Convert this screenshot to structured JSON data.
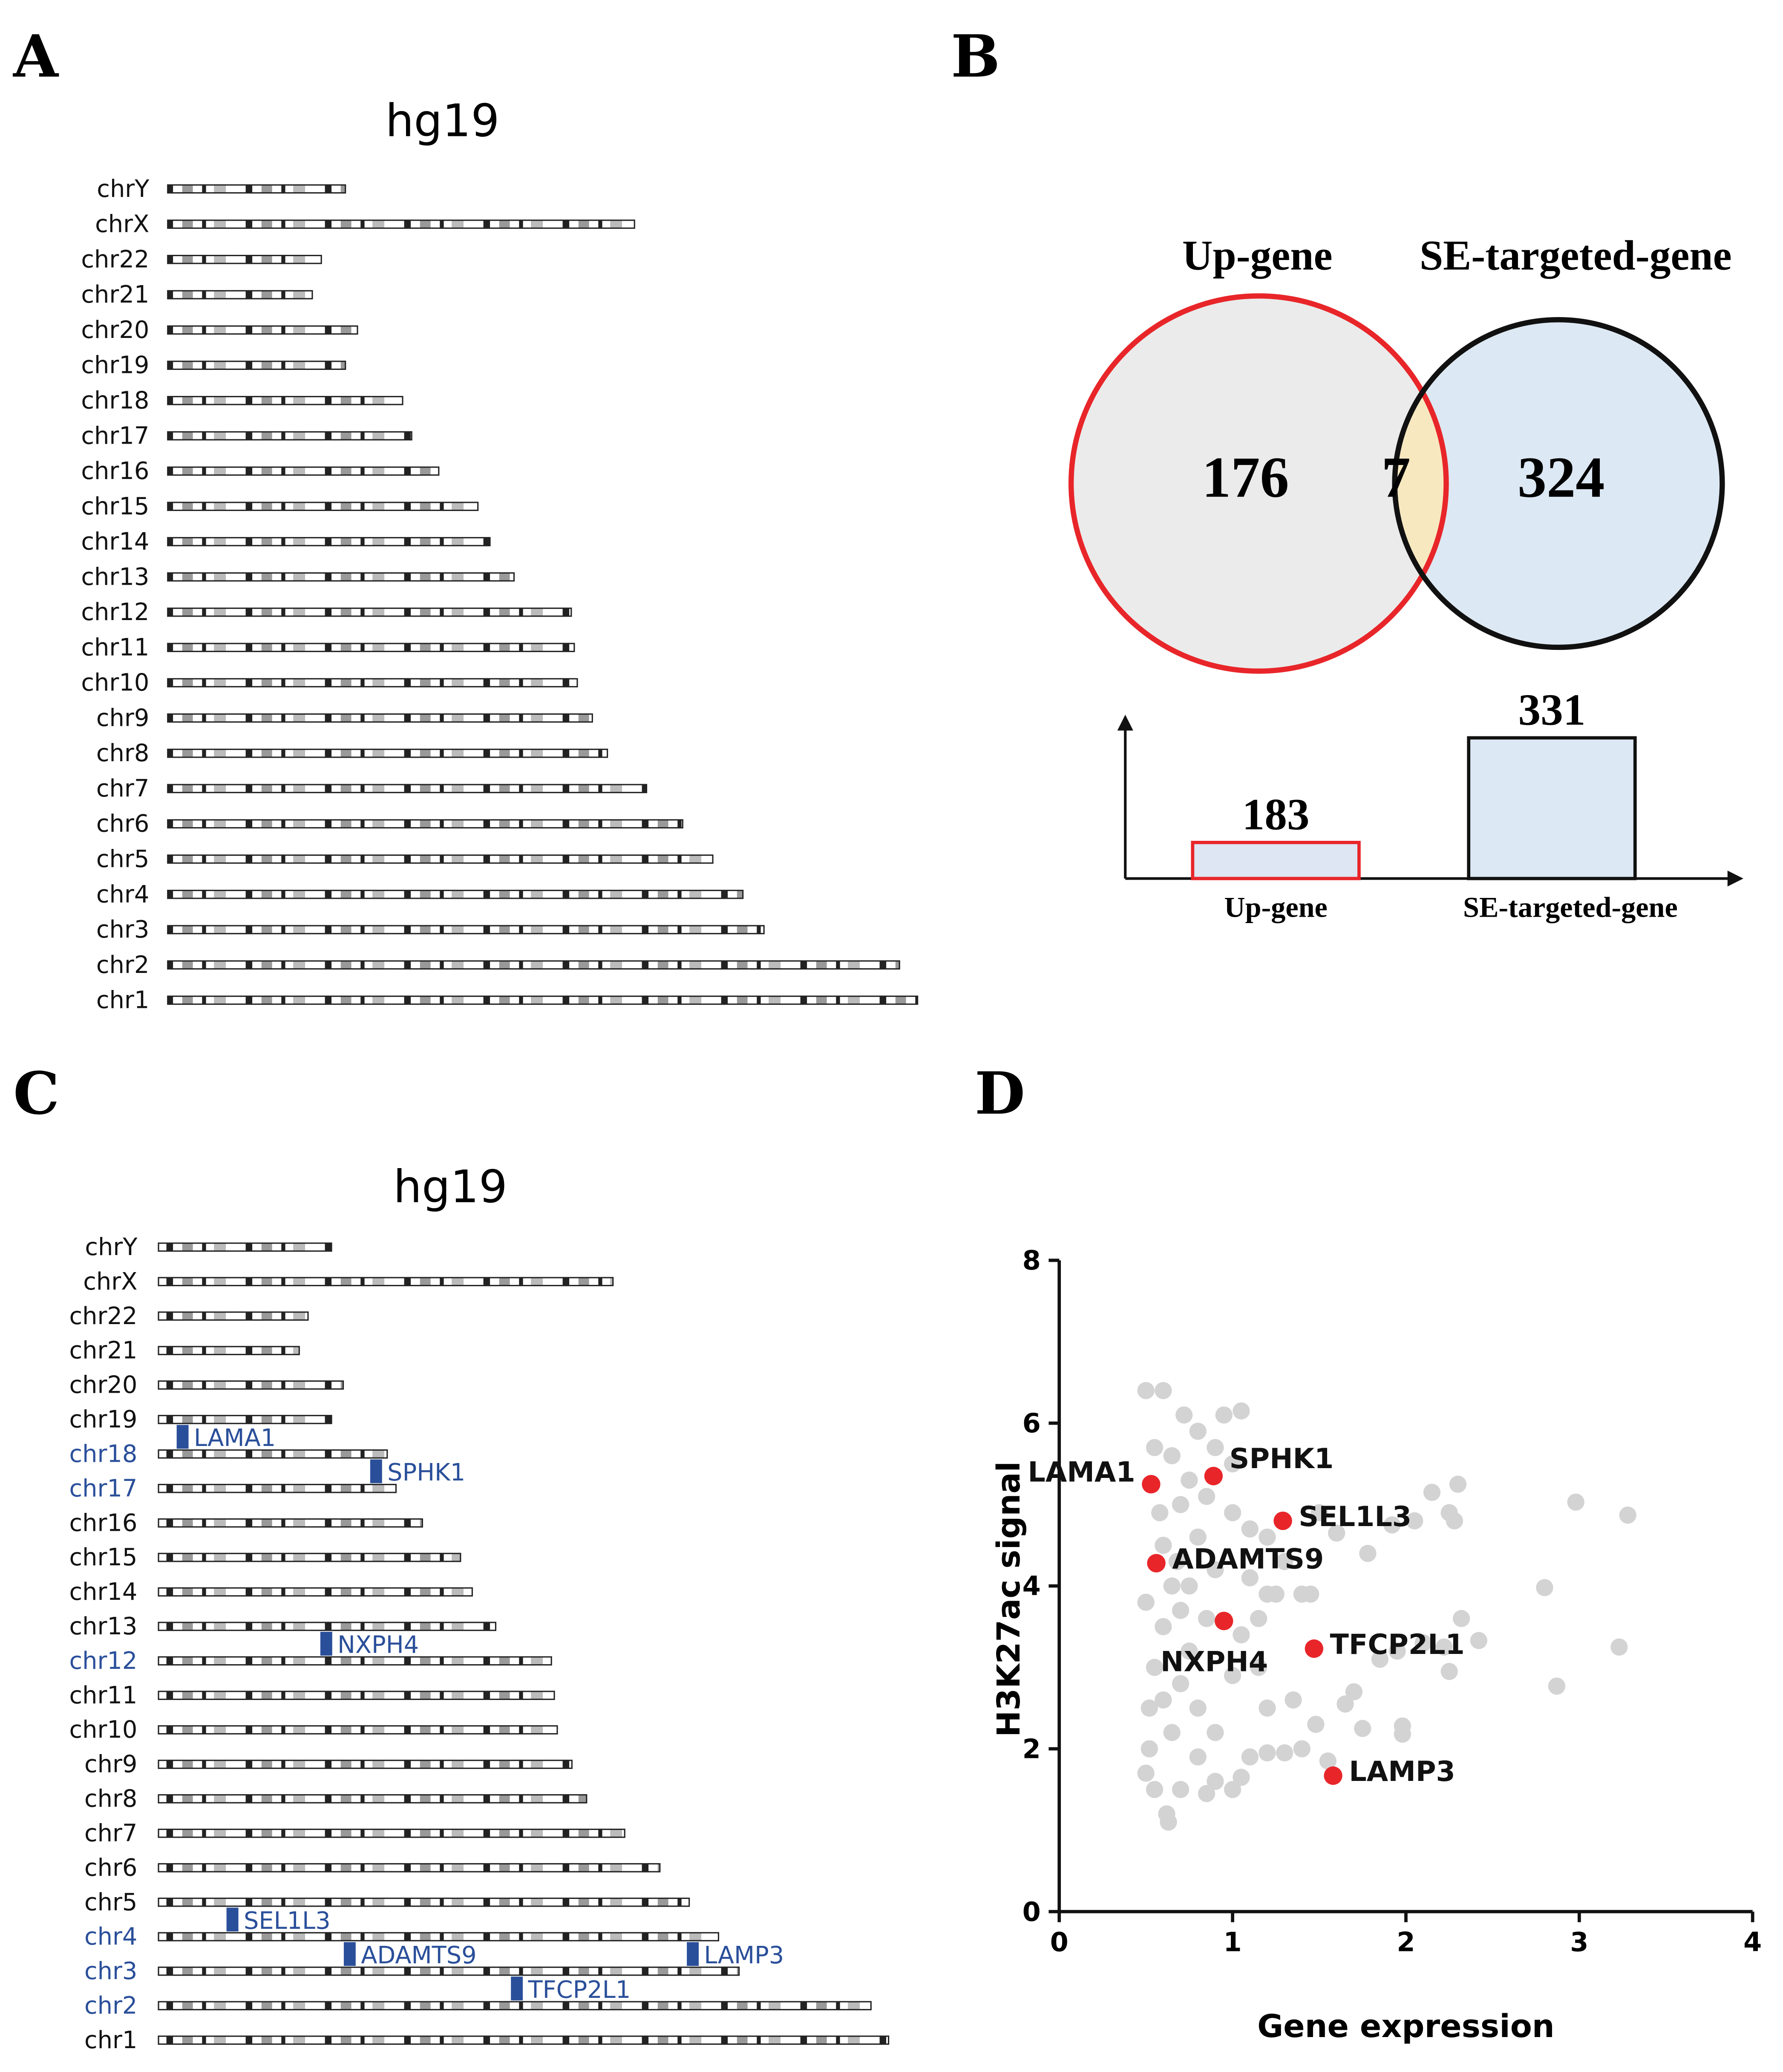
{
  "panel_labels": [
    "A",
    "B",
    "C",
    "D"
  ],
  "chart_data": [
    {
      "type": "ideogram",
      "title": "hg19",
      "categories": [
        "chrY",
        "chrX",
        "chr22",
        "chr21",
        "chr20",
        "chr19",
        "chr18",
        "chr17",
        "chr16",
        "chr15",
        "chr14",
        "chr13",
        "chr12",
        "chr11",
        "chr10",
        "chr9",
        "chr8",
        "chr7",
        "chr6",
        "chr5",
        "chr4",
        "chr3",
        "chr2",
        "chr1"
      ],
      "values": [
        59,
        155,
        51,
        48,
        63,
        59,
        78,
        81,
        90,
        103,
        107,
        115,
        134,
        135,
        136,
        141,
        146,
        159,
        171,
        181,
        191,
        198,
        243,
        249
      ],
      "label_color": "#111111"
    },
    {
      "type": "venn",
      "sets": [
        "Up-gene",
        "SE-targeted-gene"
      ],
      "values": [
        176,
        7,
        324
      ],
      "colors": [
        "#ebebeb",
        "#f7e8c0",
        "#dce8f3"
      ],
      "edge_colors": [
        "#e8262a",
        "#111111"
      ]
    },
    {
      "type": "bar",
      "categories": [
        "Up-gene",
        "SE-targeted-gene"
      ],
      "values": [
        183,
        331
      ],
      "colors": [
        "#dde6f2",
        "#dce8f3"
      ],
      "edge_colors": [
        "#e8262a",
        "#111111"
      ],
      "ylim": [
        132,
        360
      ]
    },
    {
      "type": "ideogram",
      "title": "hg19",
      "categories": [
        "chrY",
        "chrX",
        "chr22",
        "chr21",
        "chr20",
        "chr19",
        "chr18",
        "chr17",
        "chr16",
        "chr15",
        "chr14",
        "chr13",
        "chr12",
        "chr11",
        "chr10",
        "chr9",
        "chr8",
        "chr7",
        "chr6",
        "chr5",
        "chr4",
        "chr3",
        "chr2",
        "chr1"
      ],
      "values": [
        59,
        155,
        51,
        48,
        63,
        59,
        78,
        81,
        90,
        103,
        107,
        115,
        134,
        135,
        136,
        141,
        146,
        159,
        171,
        181,
        191,
        198,
        243,
        249
      ],
      "label_color": "#111111",
      "highlight": [
        6,
        7,
        12,
        20,
        21,
        22
      ],
      "highlight_color": "#2a4f9a",
      "genes": [
        {
          "name": "LAMA1",
          "chromosome": 6,
          "position": 8
        },
        {
          "name": "SPHK1",
          "chromosome": 7,
          "position": 74
        },
        {
          "name": "NXPH4",
          "chromosome": 12,
          "position": 57
        },
        {
          "name": "SEL1L3",
          "chromosome": 20,
          "position": 25
        },
        {
          "name": "ADAMTS9",
          "chromosome": 21,
          "position": 65
        },
        {
          "name": "LAMP3",
          "chromosome": 21,
          "position": 182
        },
        {
          "name": "TFCP2L1",
          "chromosome": 22,
          "position": 122
        }
      ]
    },
    {
      "type": "scatter",
      "xlabel": "Gene expression",
      "ylabel": "H3K27ac signal",
      "xlim": [
        0,
        4
      ],
      "ylim": [
        0,
        8
      ],
      "xticks": [
        0,
        1,
        2,
        3,
        4
      ],
      "yticks": [
        0,
        2,
        4,
        6,
        8
      ],
      "series": [
        {
          "color": "#d3d3d3",
          "x": [
            0.5,
            0.6,
            0.72,
            0.8,
            0.95,
            1.05,
            0.55,
            0.65,
            0.9,
            1.0,
            0.7,
            0.8,
            1.0,
            1.1,
            0.6,
            0.75,
            0.9,
            1.1,
            1.2,
            1.25,
            1.4,
            1.45,
            1.3,
            1.2,
            1.5,
            1.6,
            1.78,
            1.92,
            2.05,
            2.15,
            2.3,
            2.25,
            2.28,
            2.98,
            3.28,
            2.8,
            3.23,
            2.87,
            2.32,
            2.22,
            2.42,
            2.25,
            2.1,
            1.95,
            1.85,
            1.7,
            1.65,
            1.48,
            1.35,
            1.4,
            1.55,
            1.75,
            1.98,
            1.98,
            1.3,
            1.2,
            1.1,
            1.05,
            1.0,
            0.9,
            0.85,
            0.7,
            0.62,
            0.63,
            0.55,
            0.5,
            0.52,
            0.52,
            0.55,
            0.6,
            0.5,
            0.65,
            0.7,
            0.75,
            0.8,
            0.85,
            0.7,
            0.9,
            1.0,
            1.05,
            1.15,
            1.2,
            0.58,
            0.65,
            0.75,
            0.6,
            0.8,
            0.68,
            0.85,
            1.15
          ],
          "values": [
            6.4,
            6.4,
            6.1,
            5.9,
            6.1,
            6.15,
            5.7,
            5.6,
            5.7,
            5.5,
            5.0,
            4.6,
            4.9,
            4.7,
            4.5,
            4.0,
            4.2,
            4.1,
            3.9,
            3.9,
            3.9,
            3.9,
            4.3,
            4.6,
            4.9,
            4.65,
            4.4,
            4.75,
            4.8,
            5.15,
            5.25,
            4.9,
            4.8,
            5.03,
            4.87,
            3.98,
            3.25,
            2.77,
            3.6,
            3.25,
            3.33,
            2.95,
            3.3,
            3.2,
            3.1,
            2.7,
            2.55,
            2.3,
            2.6,
            2.0,
            1.85,
            2.25,
            2.28,
            2.18,
            1.95,
            1.95,
            1.9,
            1.65,
            1.5,
            1.6,
            1.45,
            1.5,
            1.2,
            1.1,
            1.5,
            1.7,
            2.0,
            2.5,
            3.0,
            3.5,
            3.8,
            2.2,
            2.8,
            3.2,
            2.5,
            3.6,
            3.7,
            2.2,
            2.9,
            3.4,
            3.0,
            2.5,
            4.9,
            4.0,
            5.3,
            2.6,
            1.9,
            4.3,
            5.1,
            3.6
          ]
        },
        {
          "color": "#e8262a",
          "labels": [
            "LAMA1",
            "SPHK1",
            "SEL1L3",
            "ADAMTS9",
            "NXPH4",
            "TFCP2L1",
            "LAMP3"
          ],
          "x": [
            0.53,
            0.89,
            1.29,
            0.56,
            0.95,
            1.47,
            1.58
          ],
          "values": [
            5.25,
            5.35,
            4.8,
            4.28,
            3.57,
            3.23,
            1.67
          ]
        }
      ]
    }
  ]
}
